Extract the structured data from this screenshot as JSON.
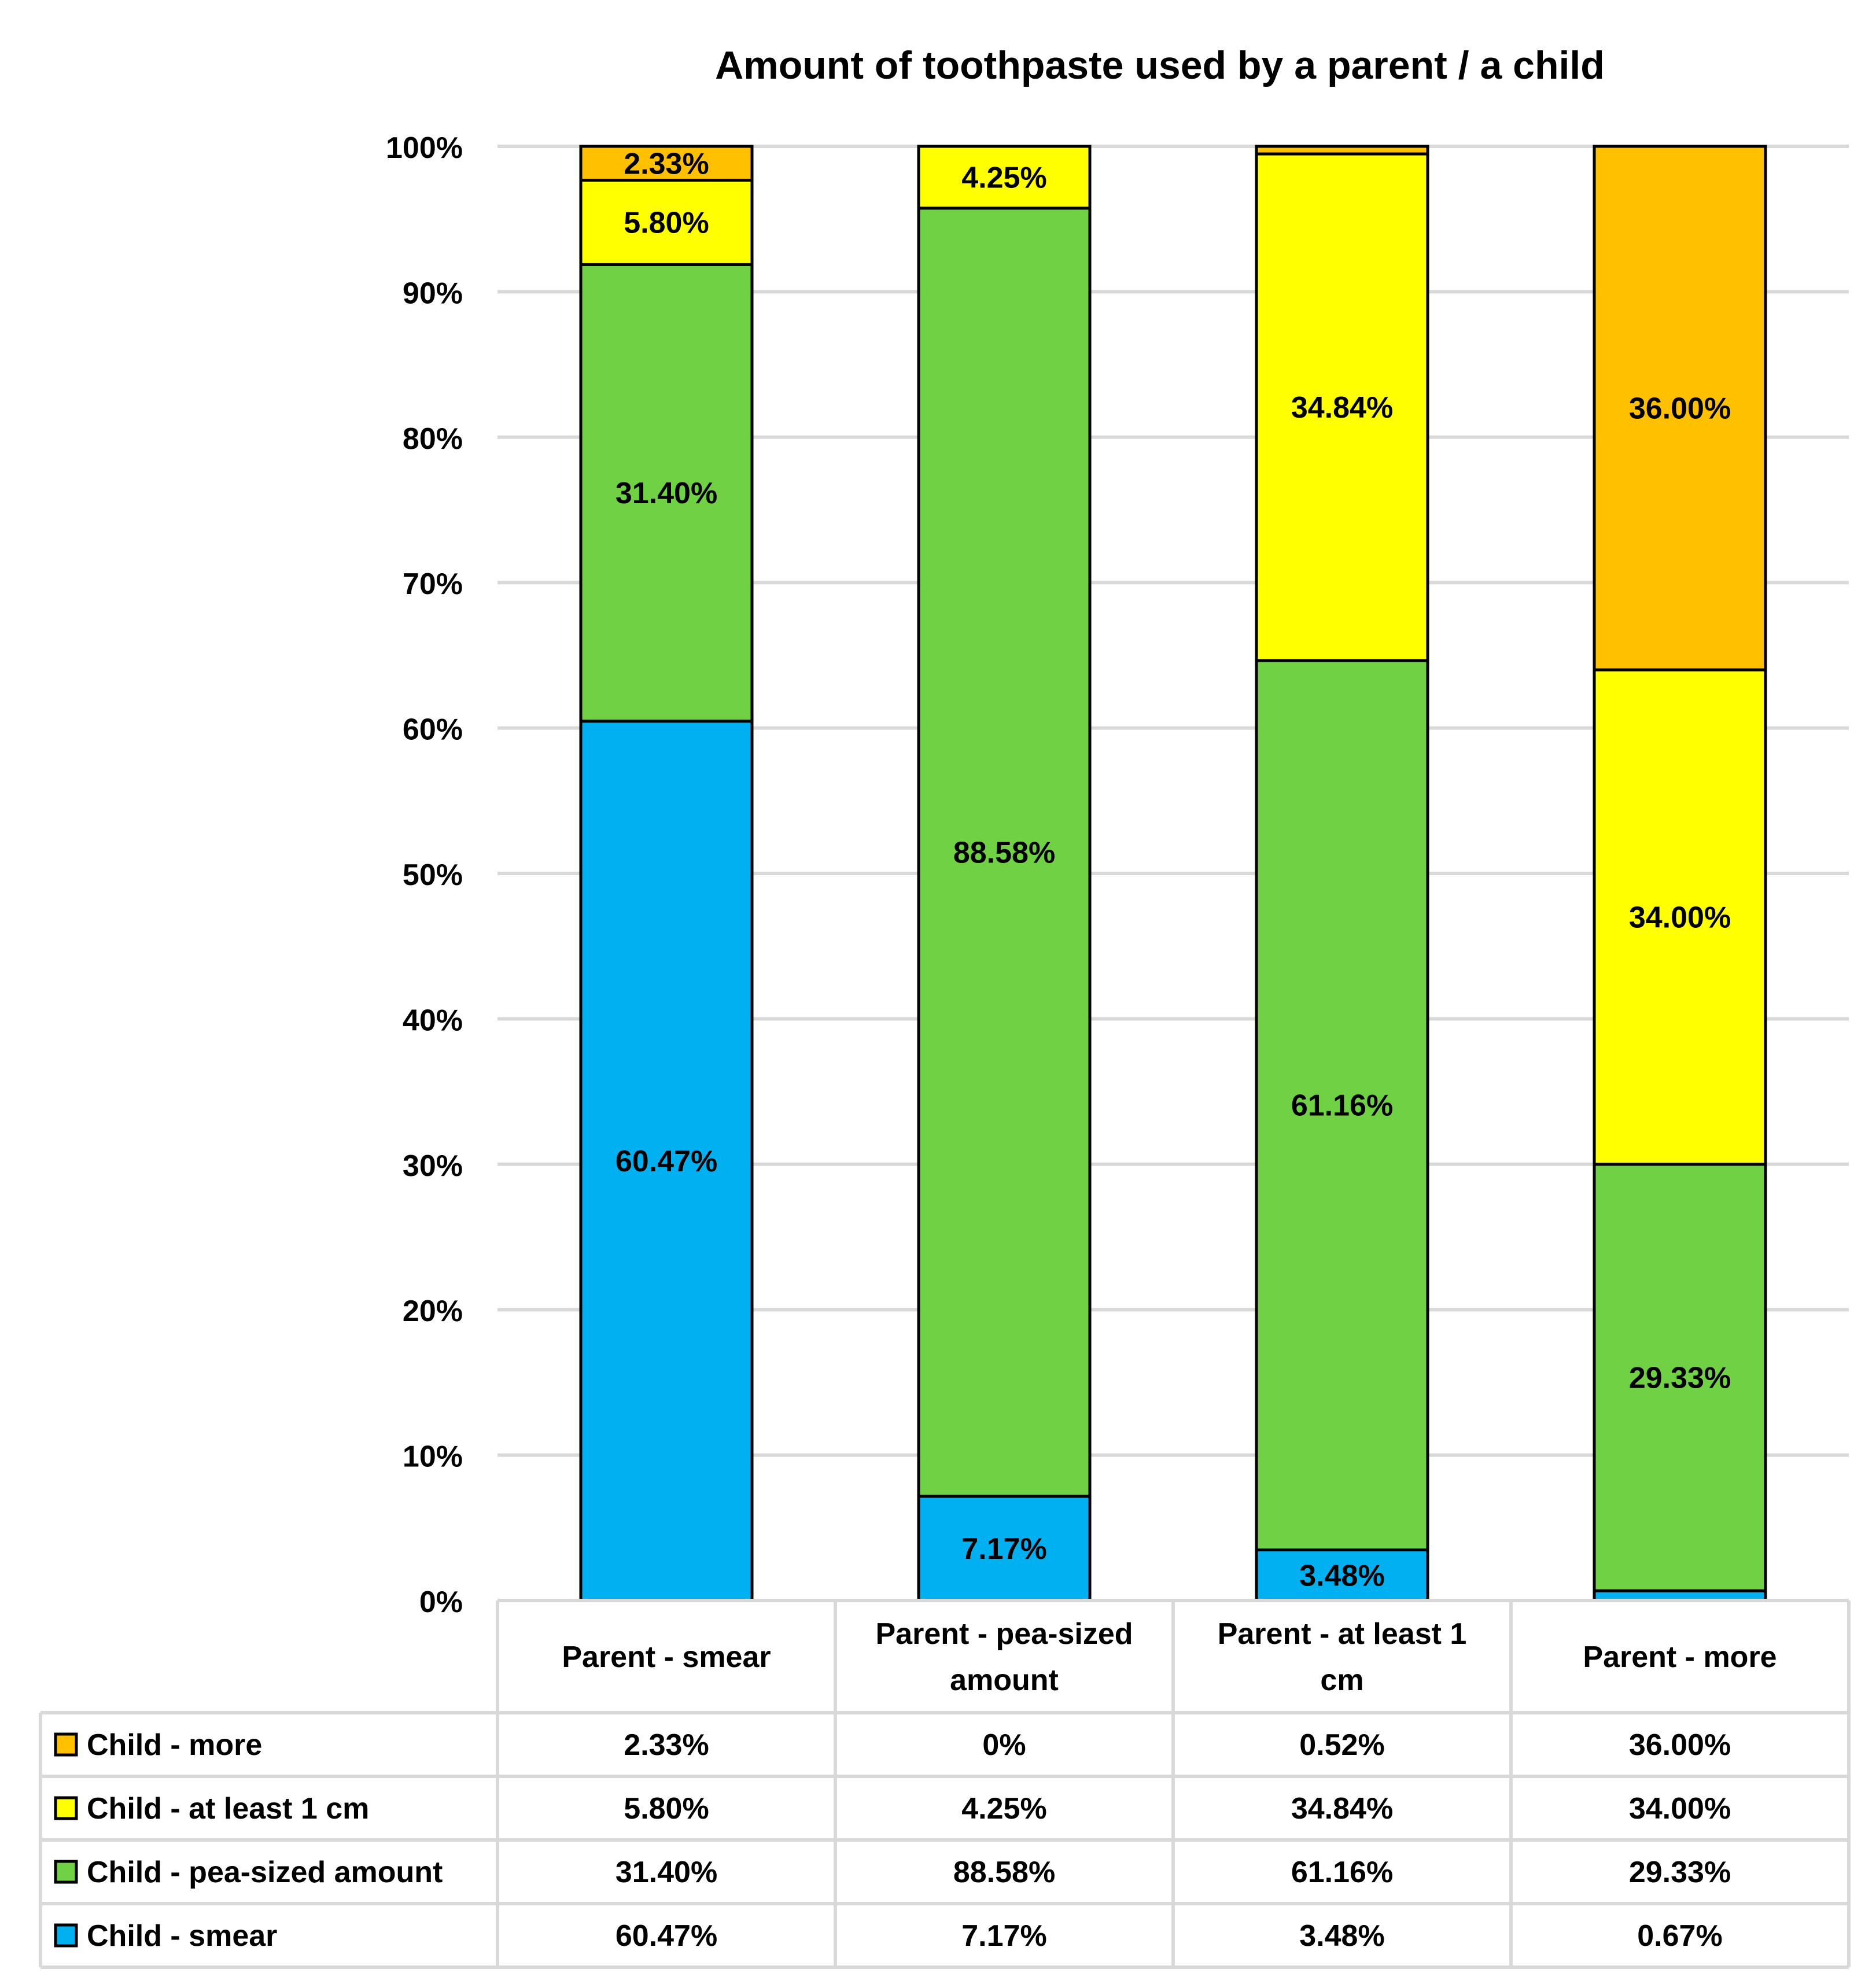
{
  "chart_data": {
    "type": "bar",
    "stacked": true,
    "title": "Amount of toothpaste used by a parent / a child",
    "categories": [
      [
        "Parent - smear"
      ],
      [
        "Parent - pea-sized",
        "amount"
      ],
      [
        "Parent - at least 1",
        "cm"
      ],
      [
        "Parent - more"
      ]
    ],
    "category_names": [
      "Parent - smear",
      "Parent - pea-sized amount",
      "Parent - at least 1 cm",
      "Parent - more"
    ],
    "series": [
      {
        "name": "Child - smear",
        "color": "#00B0F0",
        "values": [
          60.47,
          7.17,
          3.48,
          0.67
        ],
        "labels": [
          "60.47%",
          "7.17%",
          "3.48%",
          "0.67%"
        ]
      },
      {
        "name": "Child - pea-sized amount",
        "color": "#6FD143",
        "values": [
          31.4,
          88.58,
          61.16,
          29.33
        ],
        "labels": [
          "31.40%",
          "88.58%",
          "61.16%",
          "29.33%"
        ]
      },
      {
        "name": "Child - at least 1 cm",
        "color": "#FFFF00",
        "values": [
          5.8,
          4.25,
          34.84,
          34.0
        ],
        "labels": [
          "5.80%",
          "4.25%",
          "34.84%",
          "34.00%"
        ]
      },
      {
        "name": "Child - more",
        "color": "#FFC000",
        "values": [
          2.33,
          0,
          0.52,
          36.0
        ],
        "labels": [
          "2.33%",
          "0%",
          "0.52%",
          "36.00%"
        ]
      }
    ],
    "bar_labels_shown": [
      [
        true,
        true,
        true,
        true
      ],
      [
        true,
        true,
        true,
        false
      ],
      [
        true,
        true,
        true,
        false
      ],
      [
        false,
        true,
        true,
        true
      ]
    ],
    "table_row_order": [
      3,
      2,
      1,
      0
    ],
    "y_ticks": [
      "0%",
      "10%",
      "20%",
      "30%",
      "40%",
      "50%",
      "60%",
      "70%",
      "80%",
      "90%",
      "100%"
    ],
    "ylim": [
      0,
      100
    ],
    "grid": true,
    "legend": "data-table"
  }
}
